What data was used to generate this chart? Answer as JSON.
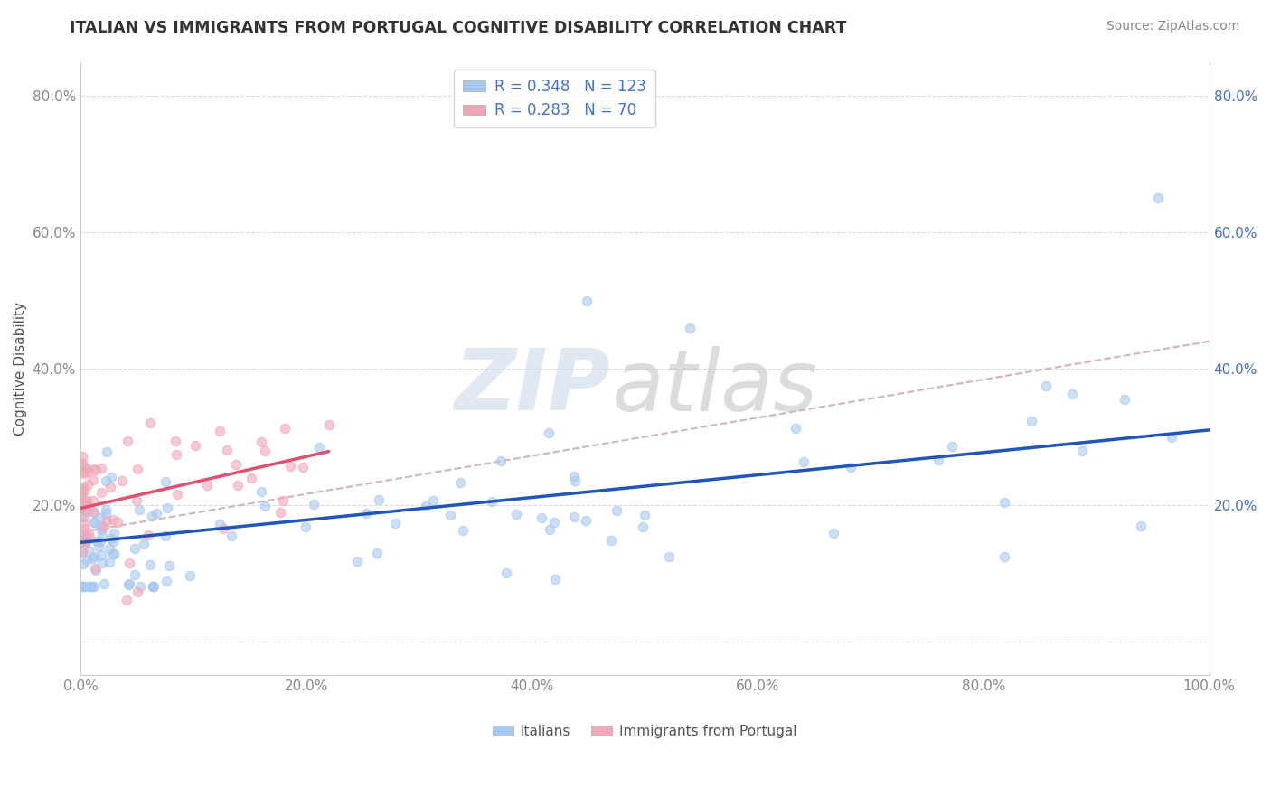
{
  "title": "ITALIAN VS IMMIGRANTS FROM PORTUGAL COGNITIVE DISABILITY CORRELATION CHART",
  "source": "Source: ZipAtlas.com",
  "ylabel": "Cognitive Disability",
  "xlim": [
    0.0,
    1.0
  ],
  "ylim": [
    -0.05,
    0.85
  ],
  "xticks": [
    0.0,
    0.2,
    0.4,
    0.6,
    0.8,
    1.0
  ],
  "xticklabels": [
    "0.0%",
    "20.0%",
    "40.0%",
    "60.0%",
    "80.0%",
    "100.0%"
  ],
  "yticks": [
    0.0,
    0.2,
    0.4,
    0.6,
    0.8
  ],
  "yticklabels": [
    "",
    "20.0%",
    "40.0%",
    "60.0%",
    "80.0%"
  ],
  "right_ytick_color": "#4472c4",
  "R_italian": 0.348,
  "N_italian": 123,
  "R_portugal": 0.283,
  "N_portugal": 70,
  "italian_scatter_color": "#a8c8ee",
  "portugal_scatter_color": "#f0a8b8",
  "italian_line_color": "#2255bb",
  "portugal_line_color": "#e05070",
  "dashed_line_color": "#c8a0b0",
  "legend_label_italian": "Italians",
  "legend_label_portugal": "Immigrants from Portugal",
  "background_color": "#ffffff",
  "grid_color": "#cccccc",
  "title_color": "#333333",
  "source_color": "#888888",
  "tick_color": "#888888",
  "watermark_zip_color": "#c8d8e8",
  "watermark_atlas_color": "#c0c0c0",
  "italian_intercept": 0.145,
  "italian_slope": 0.165,
  "portugal_intercept": 0.195,
  "portugal_slope": 0.38,
  "dashed_intercept": 0.16,
  "dashed_slope": 0.28
}
